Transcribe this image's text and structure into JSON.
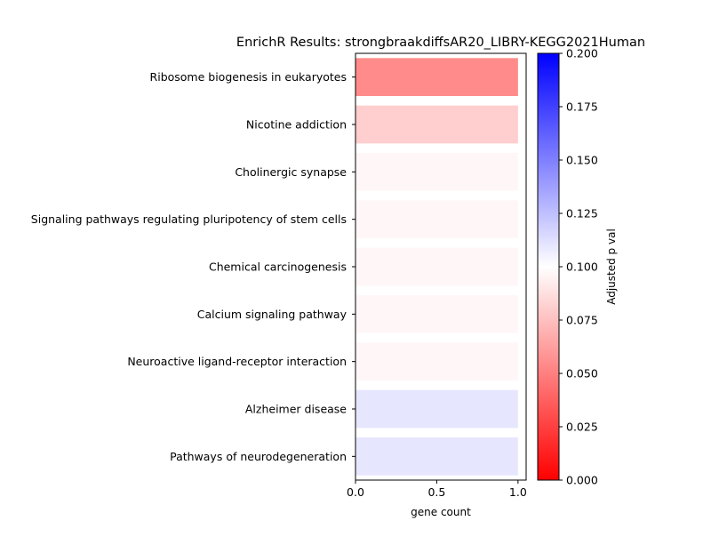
{
  "chart_data": {
    "type": "bar",
    "orientation": "horizontal",
    "title": "EnrichR Results: strongbraakdiffsAR20_LIBRY-KEGG2021Human",
    "xlabel": "gene count",
    "ylabel": "",
    "xlim": [
      0,
      1.05
    ],
    "x_ticks": [
      "0.0",
      "0.5",
      "1.0"
    ],
    "x_tick_values": [
      0,
      0.5,
      1.0
    ],
    "categories": [
      "Ribosome biogenesis in eukaryotes",
      "Nicotine addiction",
      "Cholinergic synapse",
      "Signaling pathways regulating pluripotency of stem cells",
      "Chemical carcinogenesis",
      "Calcium signaling pathway",
      "Neuroactive ligand-receptor interaction",
      "Alzheimer disease",
      "Pathways of neurodegeneration"
    ],
    "values": [
      1,
      1,
      1,
      1,
      1,
      1,
      1,
      1,
      1
    ],
    "adjusted_p_val": [
      0.03,
      0.07,
      0.095,
      0.095,
      0.095,
      0.095,
      0.095,
      0.115,
      0.115
    ],
    "colorbar": {
      "label": "Adjusted p val",
      "range": [
        0,
        0.2
      ],
      "ticks": [
        "0.000",
        "0.025",
        "0.050",
        "0.075",
        "0.100",
        "0.125",
        "0.150",
        "0.175",
        "0.200"
      ],
      "tick_values": [
        0,
        0.025,
        0.05,
        0.075,
        0.1,
        0.125,
        0.15,
        0.175,
        0.2
      ],
      "colormap": [
        "#ff0000",
        "#ffffff",
        "#0000ff"
      ]
    },
    "grid": false,
    "legend": "colorbar-right"
  }
}
